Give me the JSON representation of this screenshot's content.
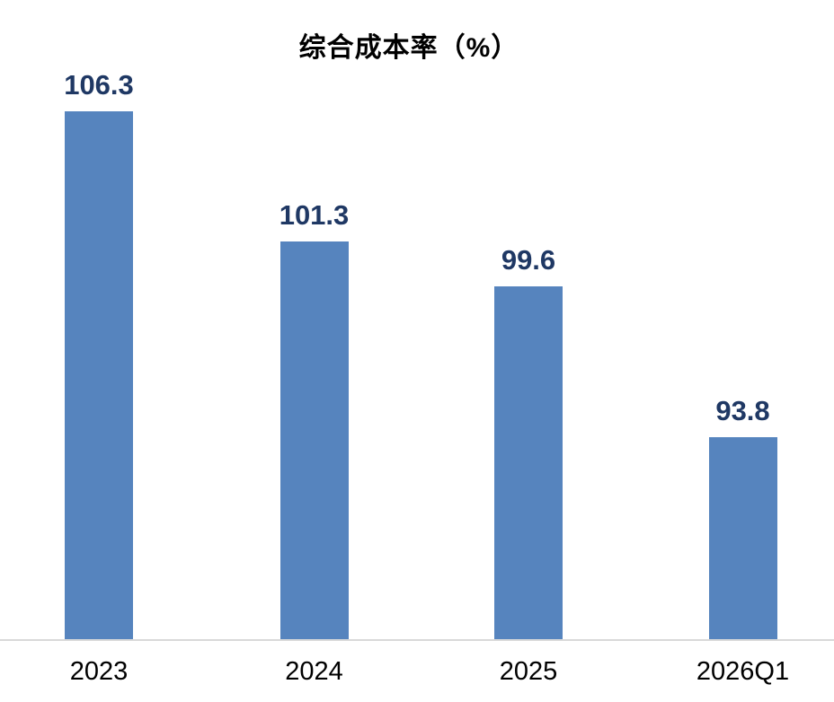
{
  "chart_data": {
    "type": "bar",
    "title": "综合成本率（%）",
    "categories": [
      "2023",
      "2024",
      "2025",
      "2026Q1"
    ],
    "values": [
      106.3,
      101.3,
      99.6,
      93.8
    ],
    "value_labels": [
      "106.3",
      "101.3",
      "99.6",
      "93.8"
    ],
    "xlabel": "",
    "ylabel": "",
    "ylim": [
      86,
      108
    ],
    "grid": false,
    "legend": "none",
    "y_axis_visible": false,
    "colors": {
      "bar_fill": "#5684BE",
      "value_label": "#1F3864",
      "title": "#000000",
      "tick_label": "#000000",
      "axis_line": "#D9D9D9",
      "background": "#FFFFFF"
    }
  }
}
